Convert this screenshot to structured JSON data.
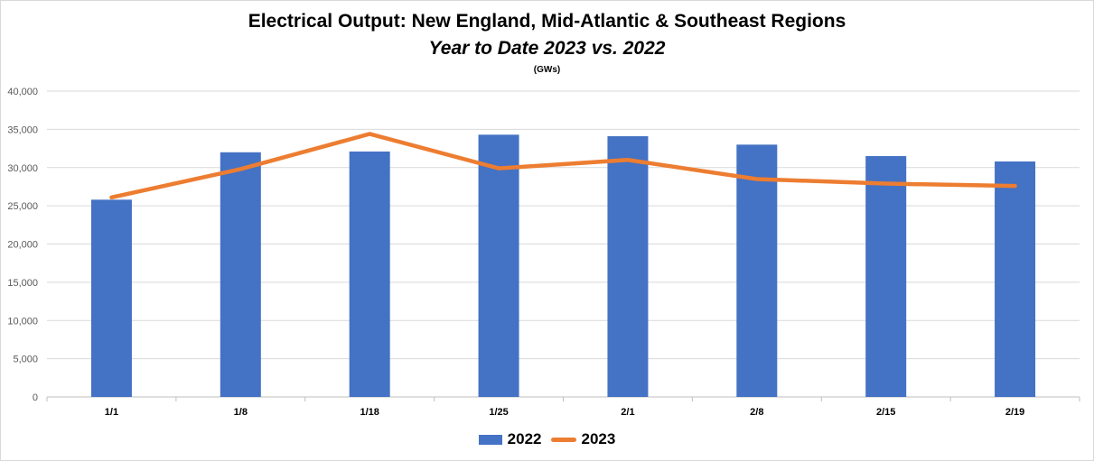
{
  "title": "Electrical Output:  New England, Mid-Atlantic & Southeast Regions",
  "subtitle": "Year to Date 2023 vs. 2022",
  "unit": "(GWs)",
  "colors": {
    "bar": "#4472c4",
    "line": "#ed7d31",
    "grid": "#d9d9d9"
  },
  "chart_data": {
    "type": "bar",
    "categories": [
      "1/1",
      "1/8",
      "1/18",
      "1/25",
      "2/1",
      "2/8",
      "2/15",
      "2/19"
    ],
    "series": [
      {
        "name": "2022",
        "type": "bar",
        "values": [
          25800,
          32000,
          32100,
          34300,
          34100,
          33000,
          31500,
          30800
        ]
      },
      {
        "name": "2023",
        "type": "line",
        "values": [
          26100,
          29800,
          34400,
          29900,
          31000,
          28500,
          27900,
          27600
        ]
      }
    ],
    "ylim": [
      0,
      40000
    ],
    "yticks": [
      "0",
      "5,000",
      "10,000",
      "15,000",
      "20,000",
      "25,000",
      "30,000",
      "35,000",
      "40,000"
    ],
    "ytick_values": [
      0,
      5000,
      10000,
      15000,
      20000,
      25000,
      30000,
      35000,
      40000
    ],
    "grid": true,
    "legend": "bottom"
  }
}
